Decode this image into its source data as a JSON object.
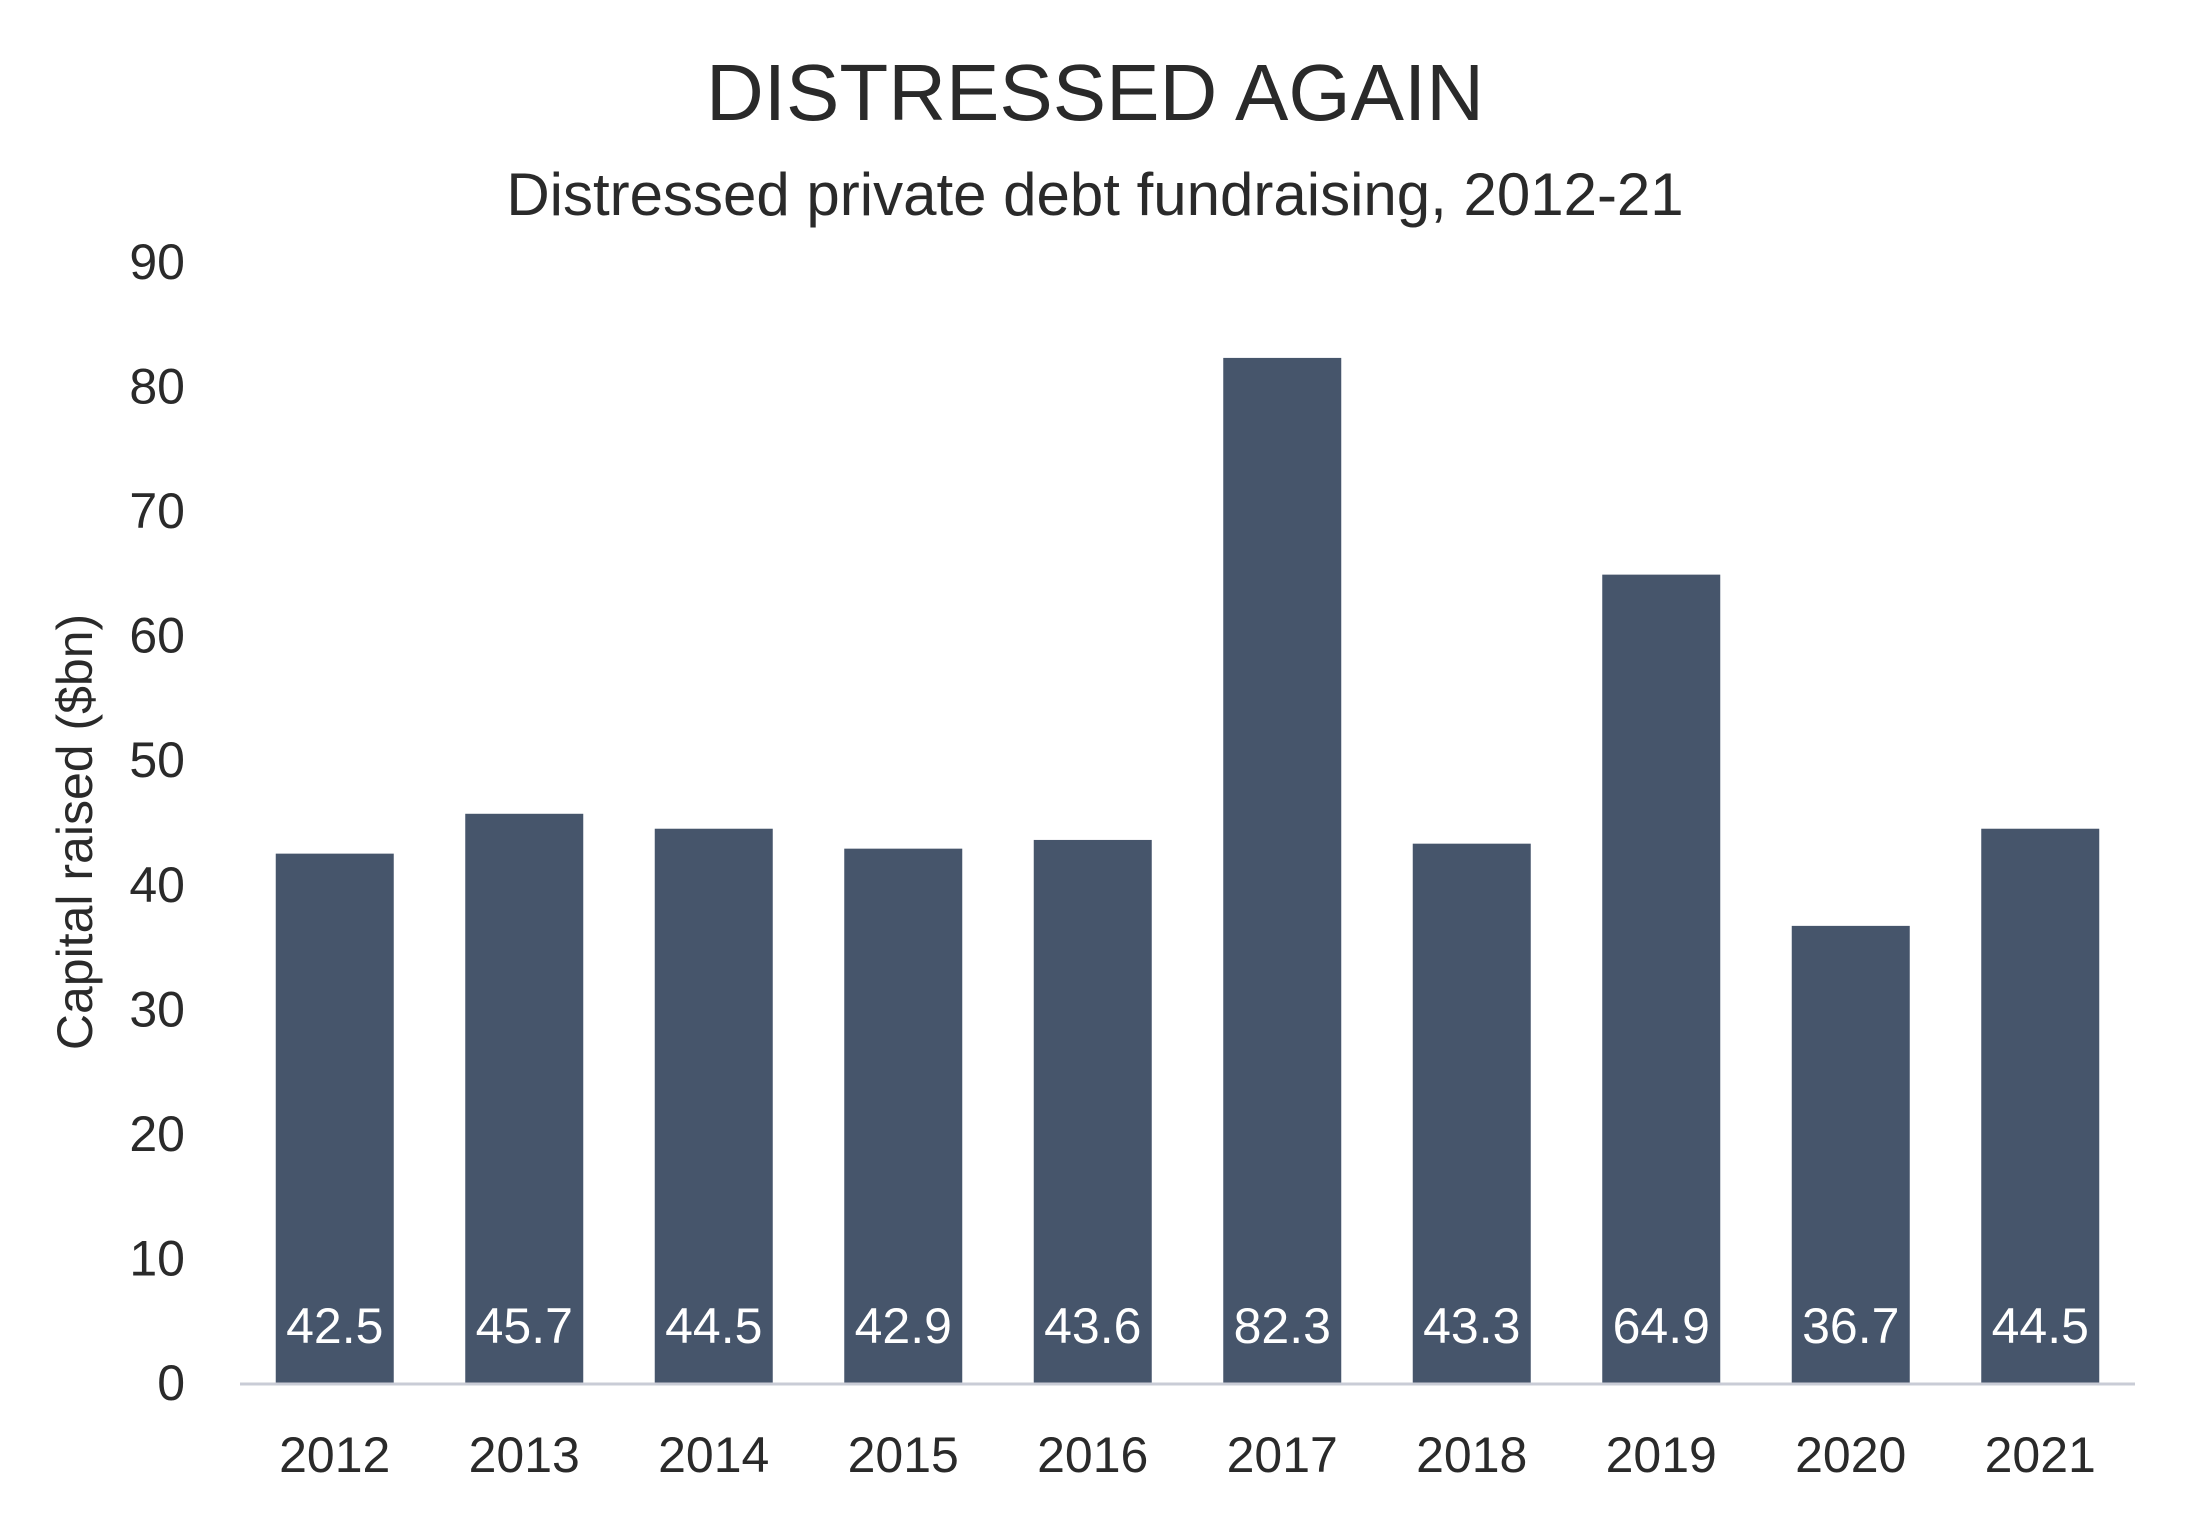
{
  "chart_data": {
    "type": "bar",
    "title": "DISTRESSED AGAIN",
    "subtitle": "Distressed private debt fundraising, 2012-21",
    "xlabel": "",
    "ylabel": "Capital raised ($bn)",
    "ylim": [
      0,
      90
    ],
    "yticks": [
      0,
      10,
      20,
      30,
      40,
      50,
      60,
      70,
      80,
      90
    ],
    "categories": [
      "2012",
      "2013",
      "2014",
      "2015",
      "2016",
      "2017",
      "2018",
      "2019",
      "2020",
      "2021"
    ],
    "values": [
      42.5,
      45.7,
      44.5,
      42.9,
      43.6,
      82.3,
      43.3,
      64.9,
      36.7,
      44.5
    ],
    "data_labels": [
      "42.5",
      "45.7",
      "44.5",
      "42.9",
      "43.6",
      "82.3",
      "43.3",
      "64.9",
      "36.7",
      "44.5"
    ],
    "grid": false,
    "legend": "none",
    "colors": {
      "bar": "#46556b",
      "axis": "#c9ccd6",
      "text": "#2a2a2a",
      "label": "#ffffff"
    }
  }
}
